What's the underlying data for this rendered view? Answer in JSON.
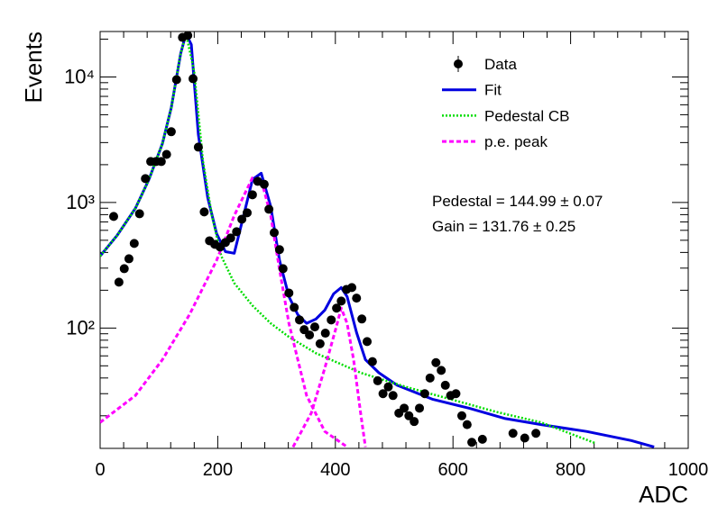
{
  "chart_data": {
    "type": "scatter",
    "log_y": true,
    "xlabel": "ADC",
    "ylabel": "Events",
    "xlim": [
      0,
      1000
    ],
    "xticks": [
      0,
      200,
      400,
      600,
      800,
      1000
    ],
    "ylim": [
      11,
      23000
    ],
    "yticks": [
      {
        "value": 100,
        "label": "10²"
      },
      {
        "value": 1000,
        "label": "10³"
      },
      {
        "value": 10000,
        "label": "10⁴"
      }
    ],
    "annotations": [
      "Pedestal = 144.99 ± 0.07",
      "Gain = 131.76 ± 0.25"
    ],
    "legend": "top-right",
    "series": [
      {
        "name": "Data",
        "color": "#000000",
        "style": "markers",
        "x": [
          23,
          32,
          41,
          49,
          58,
          67,
          77,
          86,
          95,
          104,
          113,
          121,
          130,
          140,
          149,
          158,
          167,
          177,
          186,
          195,
          204,
          213,
          222,
          232,
          241,
          250,
          259,
          268,
          279,
          287,
          296,
          305,
          311,
          321,
          330,
          339,
          347,
          356,
          365,
          374,
          383,
          393,
          402,
          410,
          419,
          428,
          436,
          445,
          454,
          463,
          472,
          481,
          490,
          498,
          508,
          517,
          525,
          534,
          543,
          552,
          561,
          571,
          580,
          587,
          596,
          605,
          615,
          624,
          632,
          650,
          702,
          722,
          741
        ],
        "values": [
          774,
          232,
          297,
          356,
          472,
          813,
          1549,
          2118,
          2118,
          2118,
          2415,
          3660,
          9510,
          20650,
          21400,
          9680,
          2760,
          841,
          495,
          464,
          442,
          480,
          521,
          585,
          736,
          828,
          1152,
          1473,
          1396,
          883,
          575,
          421,
          297,
          190,
          146,
          116,
          97,
          88,
          102,
          75,
          91,
          116,
          144,
          164,
          203,
          210,
          173,
          118,
          78,
          54,
          38,
          30,
          34,
          29,
          21,
          23,
          20,
          18,
          23,
          30,
          40,
          53,
          46,
          35,
          29,
          30,
          20,
          17,
          12.3,
          13,
          14.5,
          13.3,
          14.5
        ]
      },
      {
        "name": "Fit",
        "color": "#0000e0",
        "style": "solid",
        "x": [
          0,
          29,
          60,
          83,
          106,
          121,
          137,
          146,
          155,
          167,
          183,
          198,
          213,
          228,
          244,
          259,
          274,
          290,
          305,
          321,
          336,
          351,
          367,
          382,
          397,
          410,
          420,
          436,
          451,
          474,
          505,
          566,
          627,
          689,
          750,
          827,
          903,
          942
        ],
        "values": [
          374,
          547,
          898,
          1523,
          2950,
          5700,
          15350,
          22080,
          18100,
          3480,
          1093,
          566,
          406,
          394,
          787,
          1523,
          1710,
          929,
          345,
          178,
          128,
          109,
          118,
          139,
          187,
          210,
          178,
          92,
          56,
          44,
          35,
          27,
          23,
          19,
          17,
          15,
          12.7,
          11.3
        ]
      },
      {
        "name": "Pedestal CB",
        "color": "#00dd00",
        "style": "dotted",
        "x": [
          0,
          29,
          60,
          83,
          106,
          121,
          137,
          146,
          160,
          175,
          190,
          206,
          228,
          259,
          290,
          321,
          367,
          443,
          520,
          597,
          673,
          750,
          842
        ],
        "values": [
          374,
          547,
          898,
          1523,
          2950,
          5700,
          15350,
          22080,
          11040,
          2118,
          787,
          374,
          228,
          151,
          109,
          85,
          63,
          44,
          34,
          27,
          21.5,
          17.7,
          12.1
        ]
      },
      {
        "name": "p.e. peak",
        "color": "#ff00ff",
        "style": "dashed",
        "x": [
          0,
          60,
          106,
          152,
          198,
          228,
          259,
          274,
          290,
          305,
          321,
          351,
          382,
          420,
          null,
          328,
          359,
          382,
          401,
          410,
          420,
          431,
          443,
          451
        ],
        "values": [
          17.7,
          29,
          56,
          128,
          345,
          787,
          1575,
          1523,
          787,
          292,
          109,
          29,
          15,
          11.3,
          null,
          11.3,
          21,
          48,
          100,
          144,
          109,
          56,
          21,
          11.3
        ]
      }
    ]
  }
}
